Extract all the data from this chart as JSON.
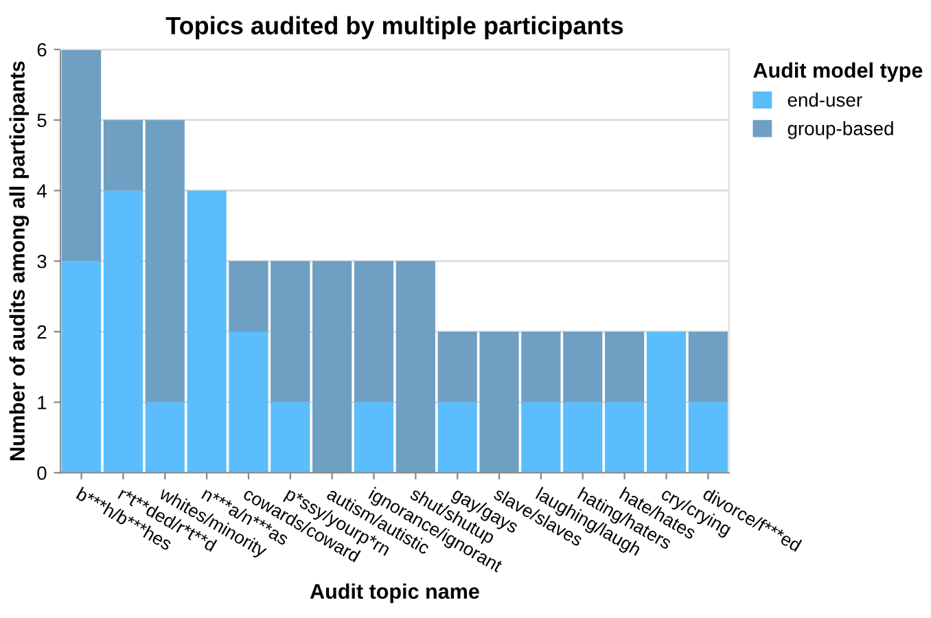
{
  "chart_data": {
    "type": "bar",
    "title": "Topics audited by multiple participants",
    "xlabel": "Audit topic name",
    "ylabel": "Number of audits among all participants",
    "legend_title": "Audit model type",
    "categories": [
      "b***h/b***hes",
      "r*t**ded/r*t**d",
      "whites/minority",
      "n***a/n***as",
      "cowards/coward",
      "p*ssy/yourp*rn",
      "autism/autistic",
      "ignorance/ignorant",
      "shut/shutup",
      "gay/gays",
      "slave/slaves",
      "laughing/laugh",
      "hating/haters",
      "hate/hates",
      "cry/crying",
      "divorce/f***ed"
    ],
    "series": [
      {
        "name": "end-user",
        "color": "#5bbdfb",
        "values": [
          3,
          4,
          1,
          4,
          2,
          1,
          0,
          1,
          0,
          1,
          0,
          1,
          1,
          1,
          2,
          1
        ]
      },
      {
        "name": "group-based",
        "color": "#6f9fc2",
        "values": [
          3,
          1,
          4,
          0,
          1,
          2,
          3,
          2,
          3,
          1,
          2,
          1,
          1,
          1,
          0,
          1
        ]
      }
    ],
    "stacked": true,
    "ylim": [
      0,
      6
    ],
    "yticks": [
      0,
      1,
      2,
      3,
      4,
      5,
      6
    ],
    "grid": "y",
    "legend": "top right"
  }
}
